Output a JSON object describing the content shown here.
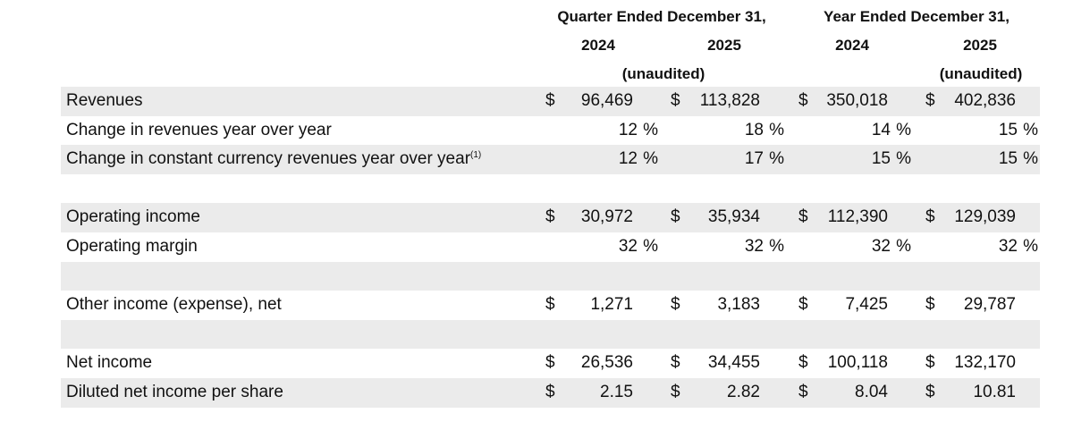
{
  "header": {
    "quarter": {
      "title": "Quarter Ended December 31,",
      "years": [
        "2024",
        "2025"
      ],
      "note": "(unaudited)"
    },
    "year": {
      "title": "Year Ended December 31,",
      "years": [
        "2024",
        "2025"
      ],
      "note": "(unaudited)"
    }
  },
  "table": {
    "rows": [
      {
        "label": "Revenues",
        "cells": [
          {
            "currency": "$",
            "value": "96,469"
          },
          {
            "currency": "$",
            "value": "113,828"
          },
          {
            "currency": "$",
            "value": "350,018"
          },
          {
            "currency": "$",
            "value": "402,836"
          }
        ]
      },
      {
        "label": "Change in revenues year over year",
        "cells": [
          {
            "value": "12",
            "unit": "%"
          },
          {
            "value": "18",
            "unit": "%"
          },
          {
            "value": "14",
            "unit": "%"
          },
          {
            "value": "15",
            "unit": "%"
          }
        ]
      },
      {
        "label": "Change in constant currency revenues year over year",
        "note": "(1)",
        "cells": [
          {
            "value": "12",
            "unit": "%"
          },
          {
            "value": "17",
            "unit": "%"
          },
          {
            "value": "15",
            "unit": "%"
          },
          {
            "value": "15",
            "unit": "%"
          }
        ]
      },
      {
        "label": "Operating income",
        "cells": [
          {
            "currency": "$",
            "value": "30,972"
          },
          {
            "currency": "$",
            "value": "35,934"
          },
          {
            "currency": "$",
            "value": "112,390"
          },
          {
            "currency": "$",
            "value": "129,039"
          }
        ]
      },
      {
        "label": "Operating margin",
        "cells": [
          {
            "value": "32",
            "unit": "%"
          },
          {
            "value": "32",
            "unit": "%"
          },
          {
            "value": "32",
            "unit": "%"
          },
          {
            "value": "32",
            "unit": "%"
          }
        ]
      },
      {
        "label": "Other income (expense), net",
        "cells": [
          {
            "currency": "$",
            "value": "1,271"
          },
          {
            "currency": "$",
            "value": "3,183"
          },
          {
            "currency": "$",
            "value": "7,425"
          },
          {
            "currency": "$",
            "value": "29,787"
          }
        ]
      },
      {
        "label": "Net income",
        "cells": [
          {
            "currency": "$",
            "value": "26,536"
          },
          {
            "currency": "$",
            "value": "34,455"
          },
          {
            "currency": "$",
            "value": "100,118"
          },
          {
            "currency": "$",
            "value": "132,170"
          }
        ]
      },
      {
        "label": "Diluted net income per share",
        "cells": [
          {
            "currency": "$",
            "value": "2.15"
          },
          {
            "currency": "$",
            "value": "2.82"
          },
          {
            "currency": "$",
            "value": "8.04"
          },
          {
            "currency": "$",
            "value": "10.81"
          }
        ]
      }
    ]
  }
}
